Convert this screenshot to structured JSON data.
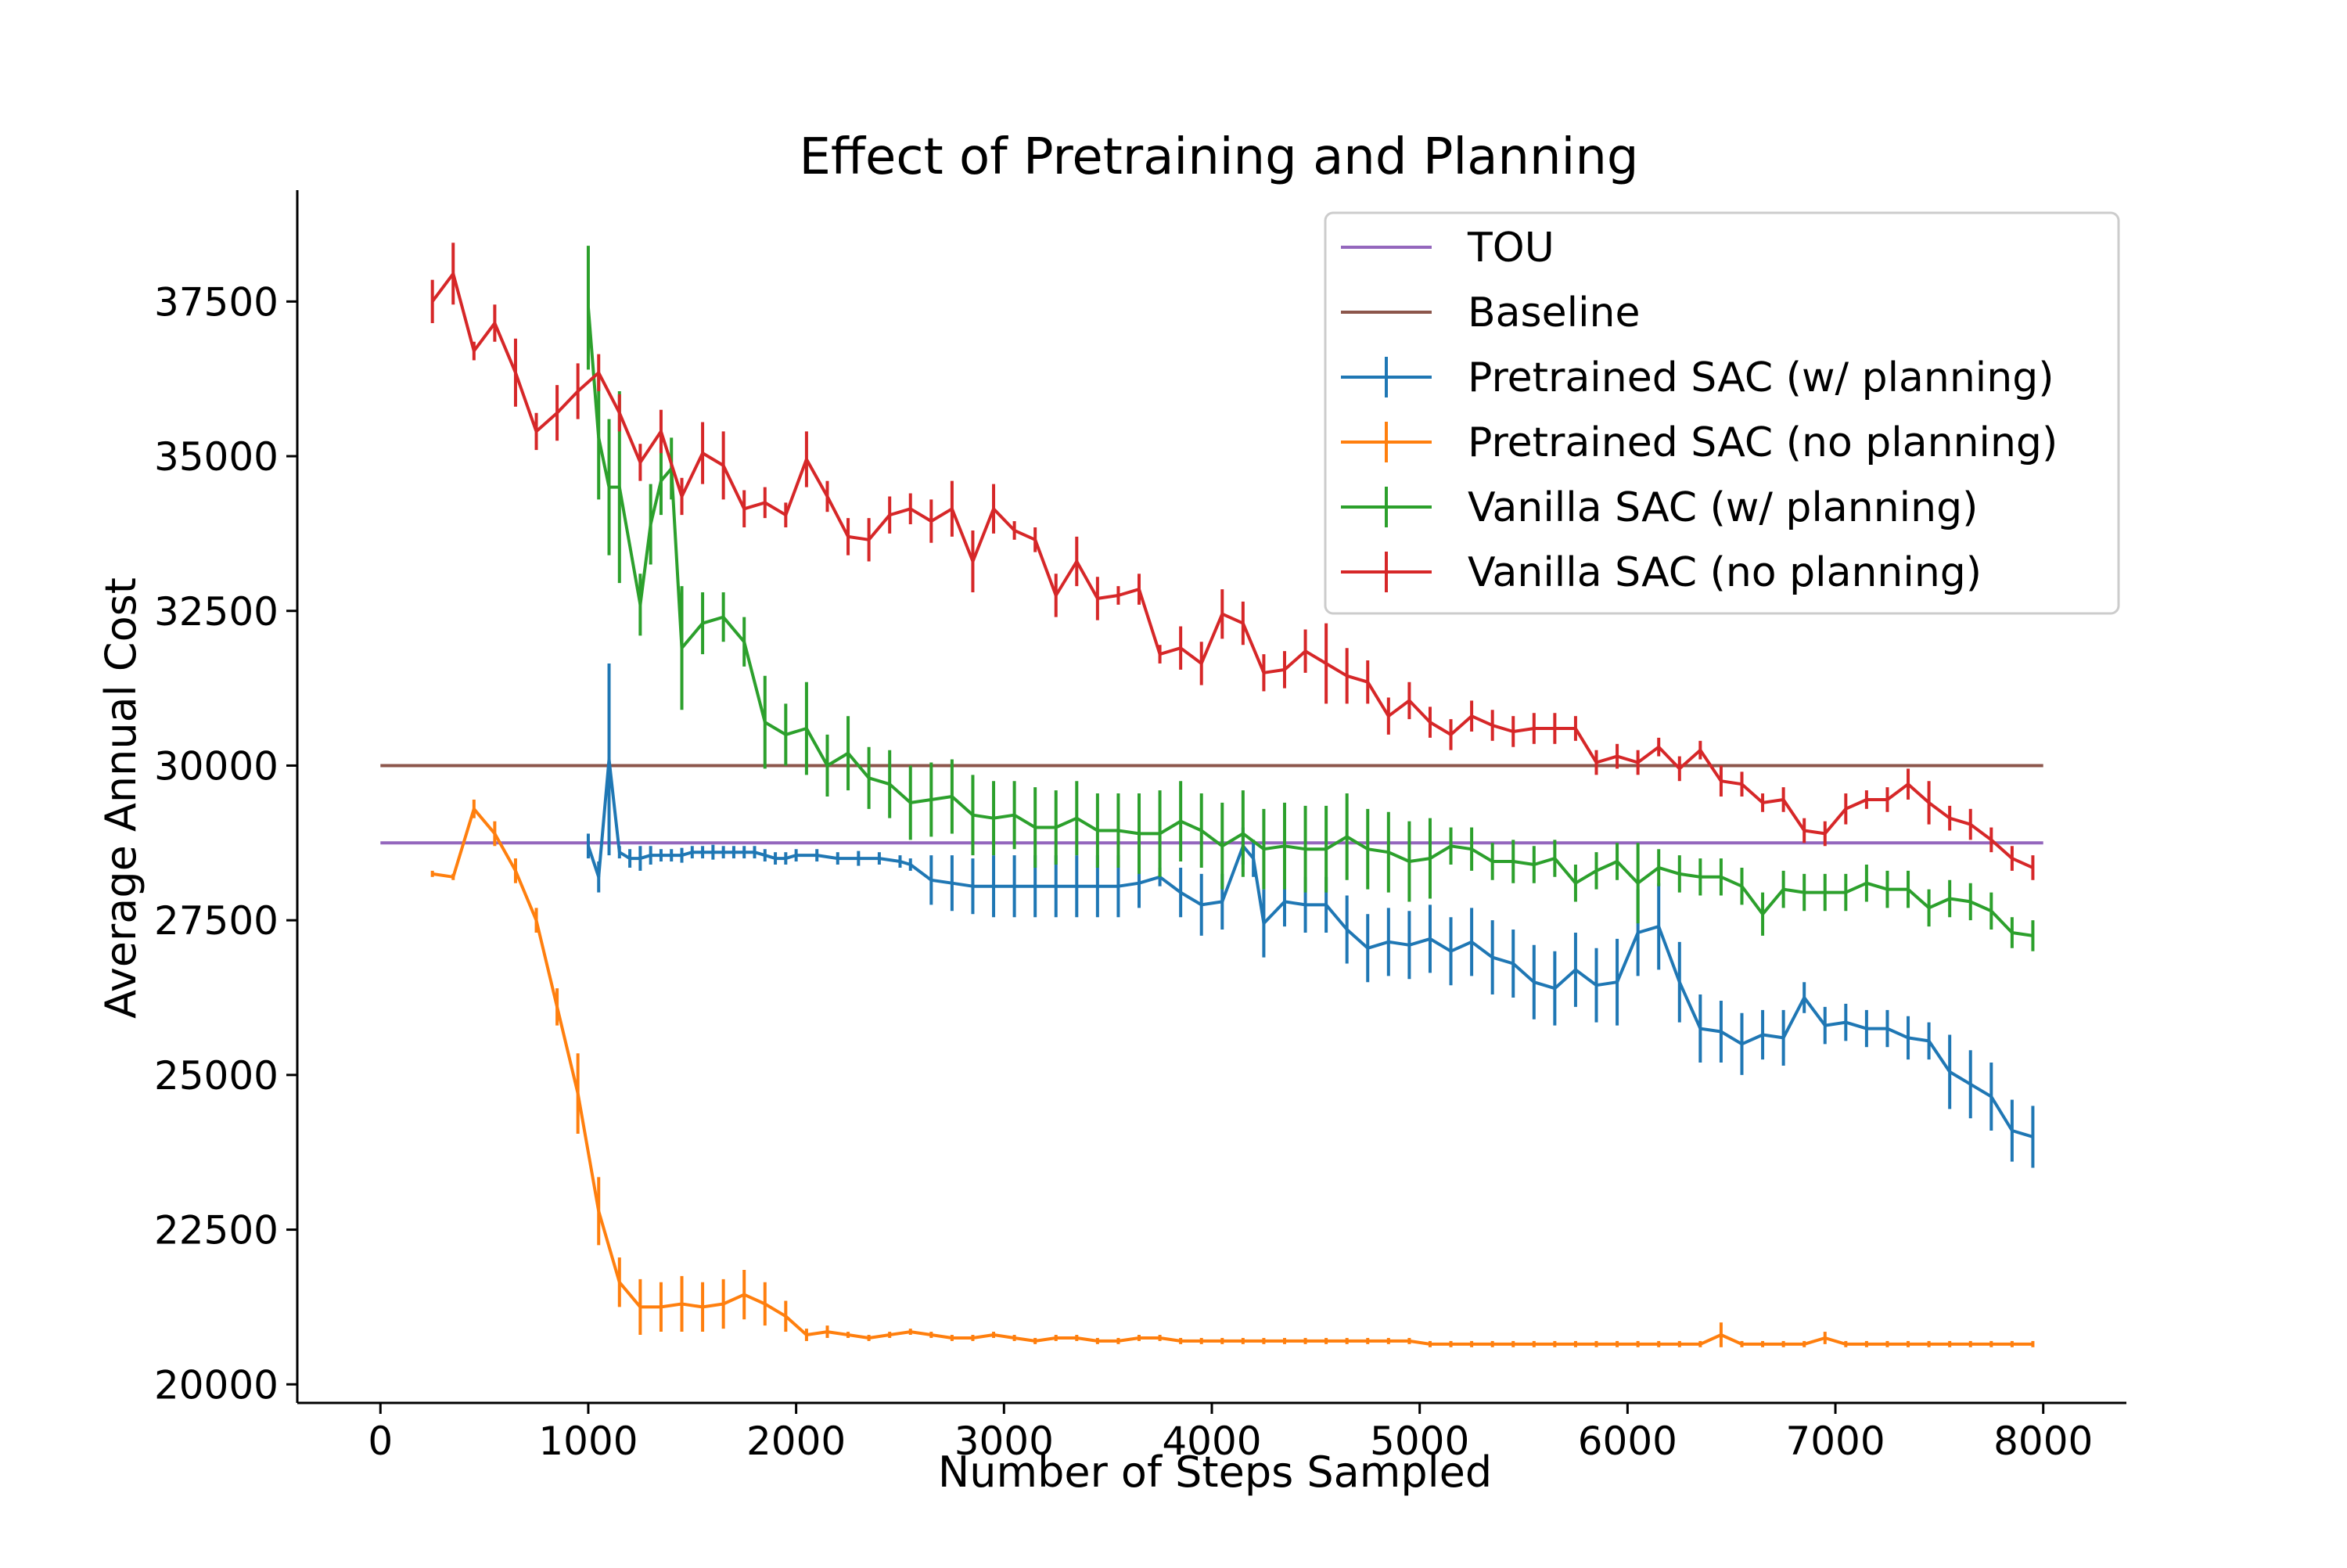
{
  "chart_data": {
    "type": "line",
    "title": "Effect of Pretraining and Planning",
    "xlabel": "Number of Steps Sampled",
    "ylabel": "Average Annual Cost",
    "xlim": [
      -400,
      8400
    ],
    "ylim": [
      19700,
      39300
    ],
    "x_ticks": [
      0,
      1000,
      2000,
      3000,
      4000,
      5000,
      6000,
      7000,
      8000
    ],
    "y_ticks": [
      20000,
      22500,
      25000,
      27500,
      30000,
      32500,
      35000,
      37500
    ],
    "x_tick_labels": [
      "0",
      "1000",
      "2000",
      "3000",
      "4000",
      "5000",
      "6000",
      "7000",
      "8000"
    ],
    "y_tick_labels": [
      "20000",
      "22500",
      "25000",
      "27500",
      "30000",
      "32500",
      "35000",
      "37500"
    ],
    "grid": false,
    "legend_position": "top-right",
    "series": [
      {
        "name": "TOU",
        "color": "#9467bd",
        "style": "hline",
        "x": [
          0,
          8000
        ],
        "y": [
          28750,
          28750
        ]
      },
      {
        "name": "Baseline",
        "color": "#8c564b",
        "style": "hline",
        "x": [
          0,
          8000
        ],
        "y": [
          30000,
          30000
        ]
      },
      {
        "name": "Pretrained SAC (w/ planning)",
        "color": "#1f77b4",
        "style": "errorbar",
        "x": [
          1000,
          1050,
          1100,
          1150,
          1200,
          1250,
          1300,
          1350,
          1400,
          1450,
          1500,
          1550,
          1600,
          1650,
          1700,
          1750,
          1800,
          1850,
          1900,
          1950,
          2000,
          2100,
          2200,
          2300,
          2400,
          2500,
          2550,
          2650,
          2750,
          2850,
          2950,
          3050,
          3150,
          3250,
          3350,
          3450,
          3550,
          3650,
          3750,
          3850,
          3950,
          4050,
          4150,
          4200,
          4250,
          4350,
          4450,
          4550,
          4650,
          4750,
          4850,
          4950,
          5050,
          5150,
          5250,
          5350,
          5450,
          5550,
          5650,
          5750,
          5850,
          5950,
          6050,
          6150,
          6250,
          6350,
          6450,
          6550,
          6650,
          6750,
          6850,
          6950,
          7050,
          7150,
          7250,
          7350,
          7450,
          7550,
          7650,
          7750,
          7850,
          7950
        ],
        "y": [
          28700,
          28200,
          30100,
          28600,
          28500,
          28500,
          28550,
          28550,
          28550,
          28550,
          28600,
          28600,
          28600,
          28600,
          28600,
          28600,
          28600,
          28550,
          28500,
          28500,
          28550,
          28550,
          28500,
          28500,
          28500,
          28450,
          28400,
          28150,
          28100,
          28050,
          28050,
          28050,
          28050,
          28050,
          28050,
          28050,
          28050,
          28100,
          28200,
          27950,
          27750,
          27800,
          28700,
          28500,
          27450,
          27800,
          27750,
          27750,
          27350,
          27050,
          27150,
          27100,
          27200,
          27000,
          27150,
          26900,
          26800,
          26500,
          26400,
          26700,
          26450,
          26500,
          27300,
          27400,
          26500,
          25750,
          25700,
          25500,
          25650,
          25600,
          26250,
          25800,
          25850,
          25750,
          25750,
          25600,
          25550,
          25050,
          24850,
          24650,
          24100,
          24000
        ],
        "err": [
          200,
          250,
          1550,
          100,
          150,
          200,
          150,
          100,
          100,
          120,
          100,
          100,
          120,
          100,
          100,
          100,
          100,
          100,
          100,
          100,
          100,
          100,
          100,
          120,
          100,
          100,
          100,
          400,
          450,
          450,
          500,
          500,
          500,
          500,
          500,
          500,
          500,
          400,
          150,
          400,
          500,
          450,
          300,
          300,
          550,
          400,
          450,
          450,
          550,
          550,
          550,
          550,
          550,
          550,
          550,
          600,
          550,
          600,
          600,
          600,
          600,
          700,
          700,
          700,
          650,
          550,
          500,
          500,
          400,
          450,
          250,
          300,
          300,
          300,
          300,
          350,
          300,
          600,
          550,
          550,
          500,
          500
        ]
      },
      {
        "name": "Pretrained SAC (no planning)",
        "color": "#ff7f0e",
        "style": "errorbar",
        "x": [
          250,
          350,
          450,
          550,
          650,
          750,
          850,
          950,
          1050,
          1150,
          1250,
          1350,
          1450,
          1550,
          1650,
          1750,
          1850,
          1950,
          2050,
          2150,
          2250,
          2350,
          2450,
          2550,
          2650,
          2750,
          2850,
          2950,
          3050,
          3150,
          3250,
          3350,
          3450,
          3550,
          3650,
          3750,
          3850,
          3950,
          4050,
          4150,
          4250,
          4350,
          4450,
          4550,
          4650,
          4750,
          4850,
          4950,
          5050,
          5150,
          5250,
          5350,
          5450,
          5550,
          5650,
          5750,
          5850,
          5950,
          6050,
          6150,
          6250,
          6350,
          6450,
          6550,
          6650,
          6750,
          6850,
          6950,
          7050,
          7150,
          7250,
          7350,
          7450,
          7550,
          7650,
          7750,
          7850,
          7950
        ],
        "y": [
          28250,
          28200,
          29300,
          28900,
          28300,
          27500,
          26100,
          24700,
          22800,
          21650,
          21250,
          21250,
          21300,
          21250,
          21300,
          21450,
          21300,
          21100,
          20800,
          20850,
          20800,
          20750,
          20800,
          20850,
          20800,
          20750,
          20750,
          20800,
          20750,
          20700,
          20750,
          20750,
          20700,
          20700,
          20750,
          20750,
          20700,
          20700,
          20700,
          20700,
          20700,
          20700,
          20700,
          20700,
          20700,
          20700,
          20700,
          20700,
          20650,
          20650,
          20650,
          20650,
          20650,
          20650,
          20650,
          20650,
          20650,
          20650,
          20650,
          20650,
          20650,
          20650,
          20800,
          20650,
          20650,
          20650,
          20650,
          20750,
          20650,
          20650,
          20650,
          20650,
          20650,
          20650,
          20650,
          20650,
          20650,
          20650
        ],
        "err": [
          50,
          50,
          150,
          200,
          200,
          200,
          300,
          650,
          550,
          400,
          450,
          400,
          450,
          400,
          400,
          400,
          350,
          250,
          100,
          100,
          50,
          50,
          50,
          50,
          50,
          50,
          50,
          50,
          50,
          50,
          50,
          50,
          50,
          50,
          50,
          50,
          50,
          50,
          50,
          50,
          50,
          50,
          50,
          50,
          50,
          50,
          50,
          50,
          50,
          50,
          50,
          50,
          50,
          50,
          50,
          50,
          50,
          50,
          50,
          50,
          50,
          50,
          200,
          50,
          50,
          50,
          50,
          100,
          50,
          50,
          50,
          50,
          50,
          50,
          50,
          50,
          50,
          50
        ]
      },
      {
        "name": "Vanilla SAC (w/ planning)",
        "color": "#2ca02c",
        "style": "errorbar",
        "x": [
          1000,
          1050,
          1100,
          1150,
          1250,
          1300,
          1350,
          1400,
          1450,
          1550,
          1650,
          1750,
          1850,
          1950,
          2050,
          2150,
          2250,
          2350,
          2450,
          2550,
          2650,
          2750,
          2850,
          2950,
          3050,
          3150,
          3250,
          3350,
          3450,
          3550,
          3650,
          3750,
          3850,
          3950,
          4050,
          4150,
          4250,
          4350,
          4450,
          4550,
          4650,
          4750,
          4850,
          4950,
          5050,
          5150,
          5250,
          5350,
          5450,
          5550,
          5650,
          5750,
          5850,
          5950,
          6050,
          6150,
          6250,
          6350,
          6450,
          6550,
          6650,
          6750,
          6850,
          6950,
          7050,
          7150,
          7250,
          7350,
          7450,
          7550,
          7650,
          7750,
          7850,
          7950
        ],
        "y": [
          37400,
          35300,
          34500,
          34500,
          32600,
          33900,
          34600,
          34800,
          31900,
          32300,
          32400,
          32000,
          30700,
          30500,
          30600,
          30000,
          30200,
          29800,
          29700,
          29400,
          29450,
          29500,
          29200,
          29150,
          29200,
          29000,
          29000,
          29150,
          28950,
          28950,
          28900,
          28900,
          29100,
          28950,
          28700,
          28900,
          28650,
          28700,
          28650,
          28650,
          28850,
          28650,
          28600,
          28450,
          28500,
          28700,
          28650,
          28450,
          28450,
          28400,
          28500,
          28100,
          28300,
          28450,
          28100,
          28350,
          28250,
          28200,
          28200,
          28050,
          27600,
          28000,
          27950,
          27950,
          27950,
          28100,
          28000,
          28000,
          27700,
          27850,
          27800,
          27650,
          27300,
          27250
        ],
        "err": [
          1000,
          1000,
          1100,
          1550,
          500,
          650,
          550,
          500,
          1000,
          500,
          400,
          400,
          750,
          500,
          750,
          500,
          600,
          500,
          550,
          600,
          600,
          600,
          650,
          600,
          550,
          650,
          600,
          600,
          600,
          600,
          650,
          700,
          650,
          600,
          700,
          700,
          650,
          700,
          700,
          700,
          700,
          650,
          650,
          650,
          650,
          300,
          350,
          300,
          350,
          300,
          300,
          300,
          300,
          300,
          650,
          300,
          300,
          300,
          300,
          300,
          350,
          300,
          300,
          300,
          300,
          300,
          300,
          300,
          300,
          300,
          300,
          300,
          250,
          250
        ]
      },
      {
        "name": "Vanilla SAC (no planning)",
        "color": "#d62728",
        "style": "errorbar",
        "x": [
          250,
          350,
          450,
          550,
          650,
          750,
          850,
          950,
          1050,
          1150,
          1250,
          1350,
          1450,
          1550,
          1650,
          1750,
          1850,
          1950,
          2050,
          2150,
          2250,
          2350,
          2450,
          2550,
          2650,
          2750,
          2850,
          2950,
          3050,
          3150,
          3250,
          3350,
          3450,
          3550,
          3650,
          3750,
          3850,
          3950,
          4050,
          4150,
          4250,
          4350,
          4450,
          4550,
          4650,
          4750,
          4850,
          4950,
          5050,
          5150,
          5250,
          5350,
          5450,
          5550,
          5650,
          5750,
          5850,
          5950,
          6050,
          6150,
          6250,
          6350,
          6450,
          6550,
          6650,
          6750,
          6850,
          6950,
          7050,
          7150,
          7250,
          7350,
          7450,
          7550,
          7650,
          7750,
          7850,
          7950
        ],
        "y": [
          37500,
          37950,
          36700,
          37150,
          36350,
          35400,
          35700,
          36050,
          36350,
          35700,
          34900,
          35400,
          34350,
          35050,
          34850,
          34150,
          34250,
          34050,
          34950,
          34350,
          33700,
          33650,
          34050,
          34150,
          33950,
          34150,
          33300,
          34150,
          33800,
          33650,
          32750,
          33300,
          32700,
          32750,
          32850,
          31800,
          31900,
          31650,
          32450,
          32300,
          31500,
          31550,
          31850,
          31650,
          31450,
          31350,
          30800,
          31050,
          30700,
          30500,
          30800,
          30650,
          30550,
          30600,
          30600,
          30600,
          30050,
          30150,
          30050,
          30300,
          29950,
          30250,
          29750,
          29700,
          29400,
          29450,
          28950,
          28900,
          29300,
          29450,
          29450,
          29700,
          29400,
          29150,
          29050,
          28800,
          28500,
          28350
        ],
        "err": [
          350,
          500,
          150,
          300,
          550,
          300,
          450,
          450,
          300,
          300,
          300,
          350,
          300,
          500,
          550,
          300,
          250,
          200,
          450,
          250,
          300,
          350,
          300,
          250,
          350,
          450,
          500,
          400,
          150,
          200,
          350,
          400,
          350,
          150,
          250,
          150,
          350,
          350,
          400,
          350,
          300,
          300,
          350,
          650,
          450,
          350,
          300,
          300,
          250,
          250,
          250,
          250,
          250,
          250,
          250,
          200,
          200,
          200,
          200,
          150,
          200,
          150,
          250,
          200,
          150,
          200,
          200,
          200,
          250,
          150,
          200,
          250,
          350,
          200,
          250,
          200,
          200,
          200
        ]
      }
    ]
  }
}
